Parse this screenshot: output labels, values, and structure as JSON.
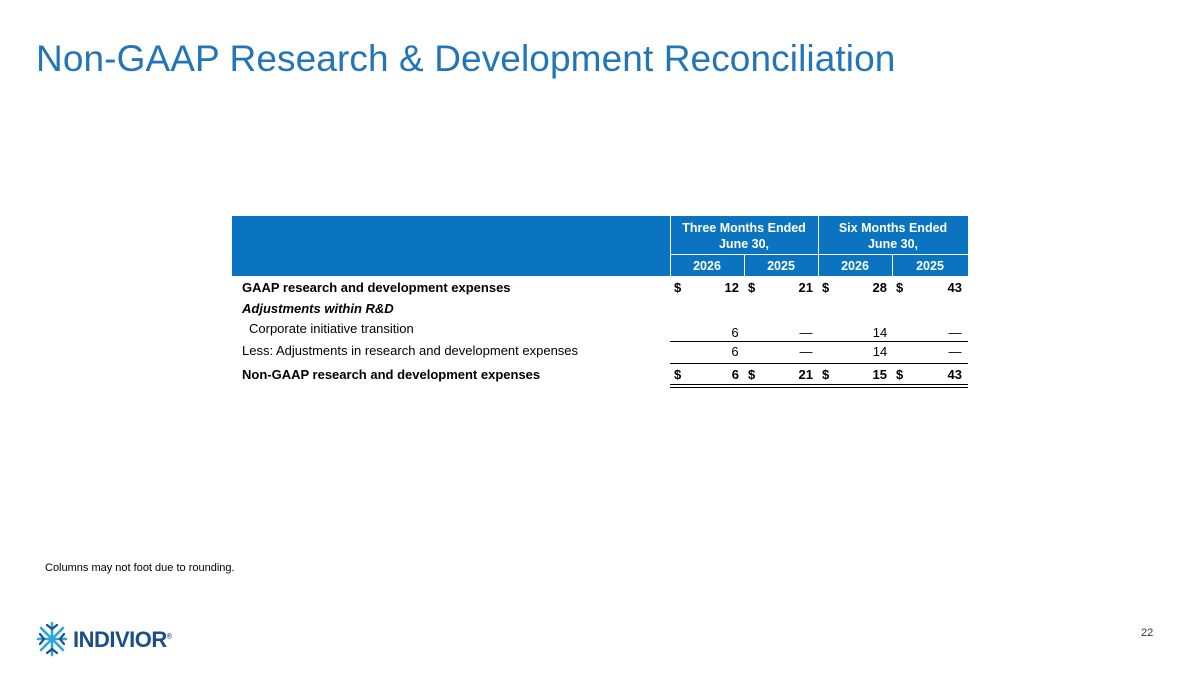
{
  "title": "Non-GAAP Research & Development Reconciliation",
  "table": {
    "group_headers": [
      "Three Months Ended\nJune 30,",
      "Six Months Ended\nJune 30,"
    ],
    "group_headers_lines": [
      [
        "Three Months Ended",
        "June 30,"
      ],
      [
        "Six Months Ended",
        "June 30,"
      ]
    ],
    "years": [
      "2026",
      "2025",
      "2026",
      "2025"
    ],
    "currency_symbol": "$",
    "rows": [
      {
        "label": "GAAP research and development expenses",
        "values": [
          "12",
          "21",
          "28",
          "43"
        ]
      },
      {
        "label": "Adjustments within R&D",
        "values": []
      },
      {
        "label": "Corporate initiative transition",
        "values": [
          "6",
          "—",
          "14",
          "—"
        ]
      },
      {
        "label": "Less: Adjustments in research and development expenses",
        "values": [
          "6",
          "—",
          "14",
          "—"
        ]
      },
      {
        "label": "Non-GAAP research and development expenses",
        "values": [
          "6",
          "21",
          "15",
          "43"
        ]
      }
    ]
  },
  "footnote": "Columns may not foot due to rounding.",
  "page_number": "22",
  "logo": {
    "text": "INDIVIOR",
    "mark": "®",
    "color": "#1a4f8a",
    "accent": "#2aa8d8"
  },
  "colors": {
    "title": "#2275b8",
    "header_band": "#0b74c1"
  }
}
